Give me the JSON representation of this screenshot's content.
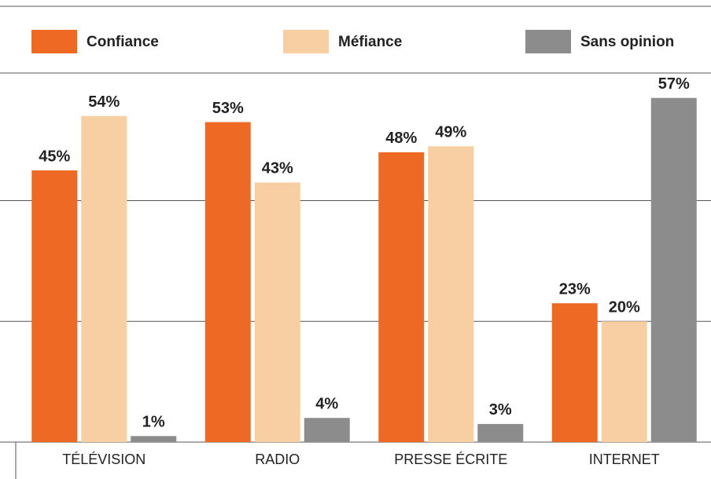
{
  "chart_data": {
    "type": "bar",
    "categories": [
      "TÉLÉVISION",
      "RADIO",
      "PRESSE ÉCRITE",
      "INTERNET"
    ],
    "series": [
      {
        "name": "Confiance",
        "color": "#ee6a24",
        "values": [
          45,
          53,
          48,
          23
        ],
        "value_labels": [
          "45%",
          "53%",
          "48%",
          "23%"
        ]
      },
      {
        "name": "Méfiance",
        "color": "#f8cfa2",
        "values": [
          54,
          43,
          49,
          20
        ],
        "value_labels": [
          "54%",
          "43%",
          "49%",
          "20%"
        ]
      },
      {
        "name": "Sans opinion",
        "color": "#8c8c8c",
        "values": [
          1,
          4,
          3,
          57
        ],
        "value_labels": [
          "1%",
          "4%",
          "3%",
          "57%"
        ]
      }
    ],
    "ylim": [
      0,
      61
    ],
    "yticks": [
      0,
      20,
      40
    ],
    "grid": true
  }
}
